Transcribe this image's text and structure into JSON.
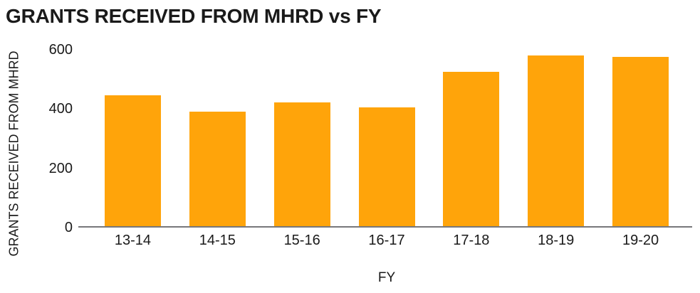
{
  "chart_data": {
    "type": "bar",
    "title": "GRANTS RECEIVED FROM MHRD vs FY",
    "xlabel": "FY",
    "ylabel": "GRANTS RECEIVED FROM MHRD",
    "categories": [
      "13-14",
      "14-15",
      "15-16",
      "16-17",
      "17-18",
      "18-19",
      "19-20"
    ],
    "values": [
      445,
      390,
      420,
      405,
      525,
      580,
      575
    ],
    "ylim": [
      0,
      600
    ],
    "yticks": [
      0,
      200,
      400,
      600
    ],
    "grid": false,
    "legend": "none",
    "bar_color": "#FFA40A",
    "axis_line_color": "#77777B",
    "text_color": "#1A1A1A",
    "background_color": "#FFFFFF"
  }
}
